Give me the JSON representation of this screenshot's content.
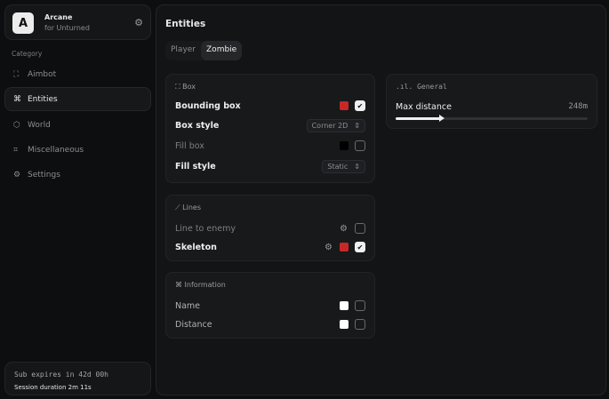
{
  "brand": {
    "logo": "A",
    "name": "Arcane",
    "subtitle": "for Unturned",
    "icon": "settings-gear-icon"
  },
  "sidebar": {
    "category_label": "Category",
    "items": [
      {
        "label": "Aimbot",
        "icon": "crosshair-icon",
        "active": false
      },
      {
        "label": "Entities",
        "icon": "scan-face-icon",
        "active": true
      },
      {
        "label": "World",
        "icon": "globe-icon",
        "active": false
      },
      {
        "label": "Miscellaneous",
        "icon": "grid-icon",
        "active": false
      },
      {
        "label": "Settings",
        "icon": "gear-icon",
        "active": false
      }
    ]
  },
  "subscription": {
    "expires": "Sub expires in 42d 00h",
    "session": "Session duration 2m 11s"
  },
  "main": {
    "title": "Entities",
    "tabs": [
      {
        "label": "Player",
        "active": false
      },
      {
        "label": "Zombie",
        "active": true
      }
    ]
  },
  "box": {
    "title": "Box",
    "rows": [
      {
        "label": "Bounding box",
        "color": "#c62828",
        "checked": true
      },
      {
        "label": "Box style",
        "value": "Corner 2D"
      },
      {
        "label": "Fill box",
        "color": "#000000",
        "checked": false
      },
      {
        "label": "Fill style",
        "value": "Static"
      }
    ]
  },
  "lines": {
    "title": "Lines",
    "rows": [
      {
        "label": "Line to enemy",
        "checked": false
      },
      {
        "label": "Skeleton",
        "color": "#c62828",
        "checked": true
      }
    ]
  },
  "information": {
    "title": "Information",
    "rows": [
      {
        "label": "Name",
        "color": "#ffffff",
        "checked": false
      },
      {
        "label": "Distance",
        "color": "#ffffff",
        "checked": false
      }
    ]
  },
  "general": {
    "title": "General",
    "max_distance_label": "Max distance",
    "max_distance_value": "248m",
    "slider_fraction": 0.24
  }
}
